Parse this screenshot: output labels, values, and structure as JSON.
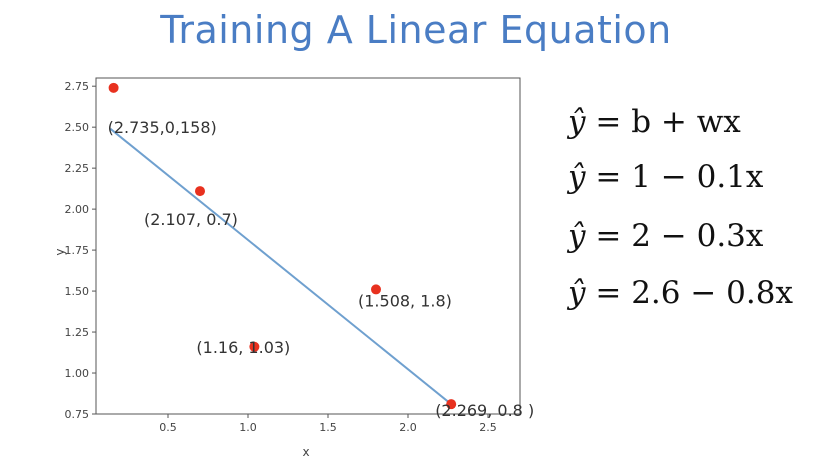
{
  "title": "Training A Linear Equation",
  "chart_data": {
    "type": "scatter",
    "xlabel": "x",
    "ylabel": "y",
    "xlim": [
      0.05,
      2.7
    ],
    "ylim": [
      0.75,
      2.8
    ],
    "x_ticks": [
      "0.5",
      "1.0",
      "1.5",
      "2.0",
      "2.5"
    ],
    "x_tick_values": [
      0.5,
      1.0,
      1.5,
      2.0,
      2.5
    ],
    "y_ticks": [
      "0.75",
      "1.00",
      "1.25",
      "1.50",
      "1.75",
      "2.00",
      "2.25",
      "2.50",
      "2.75"
    ],
    "y_tick_values": [
      0.75,
      1.0,
      1.25,
      1.5,
      1.75,
      2.0,
      2.25,
      2.5,
      2.75
    ],
    "grid": false,
    "points": [
      {
        "x": 0.16,
        "y": 2.74,
        "label": "(2.735,0,158)"
      },
      {
        "x": 0.7,
        "y": 2.11,
        "label": "(2.107, 0.7)"
      },
      {
        "x": 1.04,
        "y": 1.16,
        "label": "(1.16, 1.03)"
      },
      {
        "x": 1.8,
        "y": 1.51,
        "label": "(1.508, 1.8)"
      },
      {
        "x": 2.27,
        "y": 0.81,
        "label": "(2.269, 0.8 )"
      }
    ],
    "line": {
      "x": [
        0.14,
        2.27
      ],
      "y": [
        2.49,
        0.81
      ]
    },
    "colors": {
      "point": "#e8311f",
      "line": "#6fa0cf",
      "axis": "#555555"
    }
  },
  "equations": [
    "= b + wx",
    "= 1 − 0.1x",
    "= 2 − 0.3x",
    "= 2.6 − 0.8x"
  ],
  "equation_symbol": "ŷ"
}
